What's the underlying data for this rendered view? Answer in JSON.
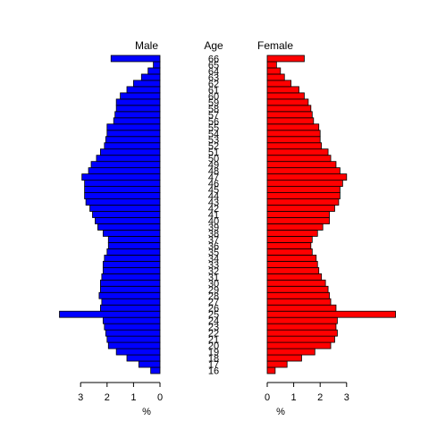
{
  "chart_data": {
    "type": "bar",
    "subtype": "population-pyramid",
    "left_title": "Male",
    "center_title": "Age",
    "right_title": "Female",
    "xlabel_left": "%",
    "xlabel_right": "%",
    "xlim_left": [
      0,
      3.7
    ],
    "xlim_right": [
      0,
      4.9
    ],
    "left_ticks": [
      "3",
      "2",
      "1",
      "0"
    ],
    "right_ticks": [
      "0",
      "1",
      "2",
      "3"
    ],
    "colors": {
      "male": "#0000ff",
      "female": "#ff0000",
      "border": "#000000"
    },
    "ages": [
      16,
      17,
      18,
      19,
      20,
      21,
      22,
      23,
      24,
      25,
      26,
      27,
      28,
      29,
      30,
      31,
      32,
      33,
      34,
      35,
      36,
      37,
      38,
      39,
      40,
      41,
      42,
      43,
      44,
      45,
      46,
      47,
      48,
      49,
      50,
      51,
      52,
      53,
      54,
      55,
      56,
      57,
      58,
      59,
      60,
      61,
      62,
      63,
      64,
      65,
      66
    ],
    "series": [
      {
        "name": "Male",
        "values": [
          0.35,
          0.8,
          1.25,
          1.65,
          1.95,
          2.0,
          2.05,
          2.1,
          2.15,
          3.8,
          2.25,
          2.2,
          2.3,
          2.25,
          2.25,
          2.2,
          2.15,
          2.15,
          2.1,
          2.0,
          1.95,
          1.95,
          2.15,
          2.35,
          2.45,
          2.55,
          2.65,
          2.8,
          2.85,
          2.85,
          2.85,
          2.95,
          2.7,
          2.6,
          2.4,
          2.25,
          2.1,
          2.05,
          2.0,
          2.0,
          1.75,
          1.7,
          1.65,
          1.65,
          1.5,
          1.25,
          1.0,
          0.7,
          0.45,
          0.25,
          1.85
        ]
      },
      {
        "name": "Female",
        "values": [
          0.3,
          0.75,
          1.3,
          1.8,
          2.4,
          2.55,
          2.65,
          2.6,
          2.65,
          4.85,
          2.6,
          2.4,
          2.35,
          2.3,
          2.2,
          2.05,
          1.95,
          1.9,
          1.85,
          1.7,
          1.65,
          1.7,
          1.9,
          2.1,
          2.35,
          2.35,
          2.55,
          2.7,
          2.75,
          2.75,
          2.85,
          3.0,
          2.75,
          2.6,
          2.4,
          2.3,
          2.05,
          2.0,
          2.0,
          1.95,
          1.75,
          1.7,
          1.65,
          1.55,
          1.4,
          1.2,
          0.9,
          0.65,
          0.5,
          0.35,
          1.4
        ]
      }
    ]
  }
}
